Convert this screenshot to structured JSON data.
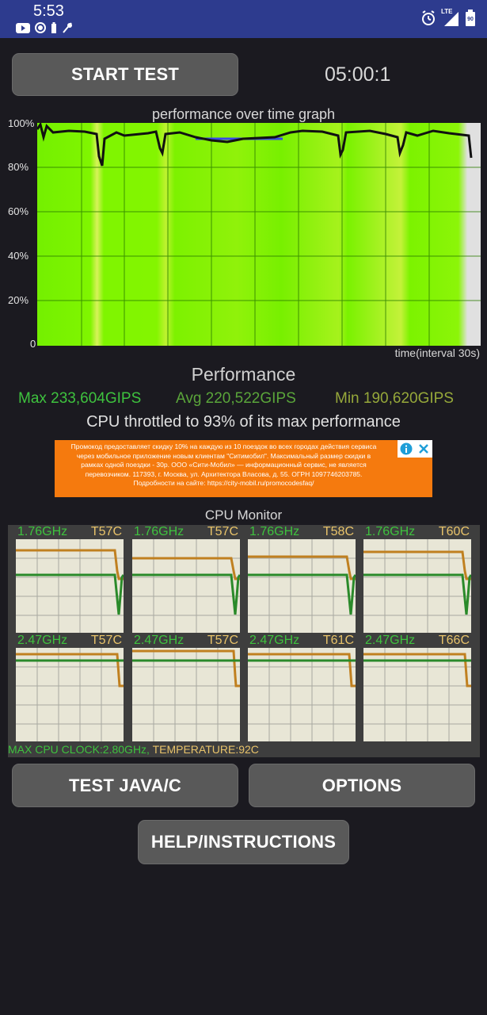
{
  "status_bar": {
    "time": "5:53",
    "network": "LTE",
    "battery": "90"
  },
  "toolbar": {
    "start_label": "START TEST",
    "timer": "05:00:1"
  },
  "graph": {
    "title": "performance over time graph",
    "yticks": [
      "100%",
      "80%",
      "60%",
      "40%",
      "20%",
      "0"
    ],
    "xlabel": "time(interval 30s)"
  },
  "performance": {
    "title": "Performance",
    "max": "Max 233,604GIPS",
    "avg": "Avg 220,522GIPS",
    "min": "Min 190,620GIPS",
    "throttle": "CPU throttled to 93% of its max performance"
  },
  "ad": {
    "text": "Промокод предоставляет скидку 10% на каждую из 10 поездок во всех городах действия сервиса через мобильное приложение новым клиентам \"Ситимобил\". Максимальный размер скидки в рамках одной поездки - 30р. ООО «Сити-Мобил» — информационный сервис, не является перевозчиком. 117393, г. Москва, ул. Архитектора Власова, д. 55. ОГРН 1097746203785. Подробности на сайте: https://city-mobil.ru/promocodesfaq/"
  },
  "cpu_monitor": {
    "title": "CPU Monitor",
    "cores": [
      {
        "freq": "1.76GHz",
        "temp": "T57C"
      },
      {
        "freq": "1.76GHz",
        "temp": "T57C"
      },
      {
        "freq": "1.76GHz",
        "temp": "T58C"
      },
      {
        "freq": "1.76GHz",
        "temp": "T60C"
      },
      {
        "freq": "2.47GHz",
        "temp": "T57C"
      },
      {
        "freq": "2.47GHz",
        "temp": "T57C"
      },
      {
        "freq": "2.47GHz",
        "temp": "T61C"
      },
      {
        "freq": "2.47GHz",
        "temp": "T66C"
      }
    ],
    "max_clock": "MAX CPU CLOCK:2.80GHz,",
    "temperature": "TEMPERATURE:92C"
  },
  "buttons": {
    "test_java": "TEST JAVA/C",
    "options": "OPTIONS",
    "help": "HELP/INSTRUCTIONS"
  },
  "colors": {
    "status_bar": "#2d3b8e",
    "graph_green": "#7ff500",
    "freq_green": "#3ec23e",
    "temp_yellow": "#e8c36a",
    "ad_orange": "#f57a0e",
    "button_gray": "#595959"
  }
}
